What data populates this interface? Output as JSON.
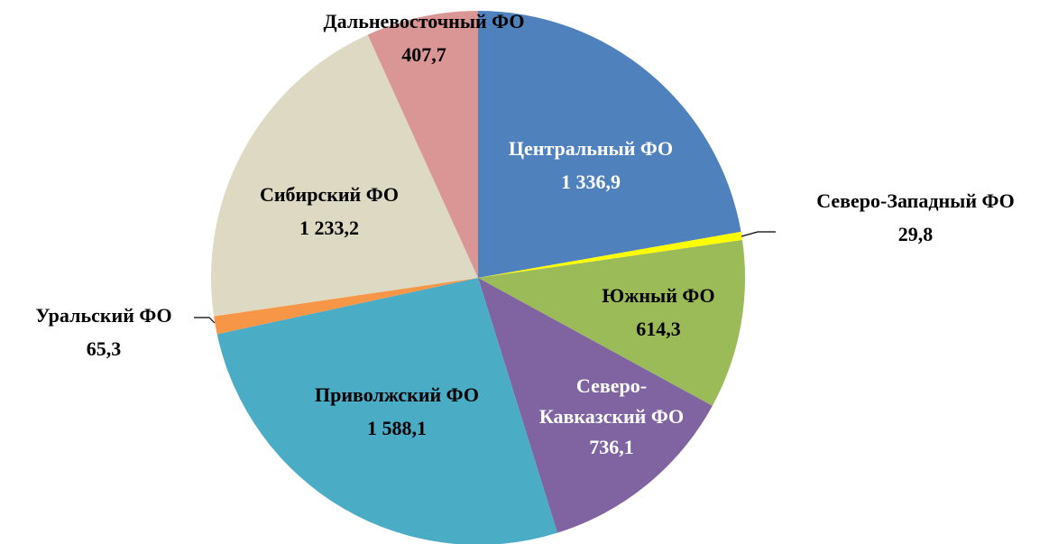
{
  "chart_data": {
    "type": "pie",
    "categories": [
      "Центральный ФО",
      "Северо-Западный ФО",
      "Южный ФО",
      "Северо-Кавказский ФО",
      "Приволжский ФО",
      "Уральский ФО",
      "Сибирский ФО",
      "Дальневосточный ФО"
    ],
    "values": [
      1336.9,
      29.8,
      614.3,
      736.1,
      1588.1,
      65.3,
      1233.2,
      407.7
    ],
    "value_labels": [
      "1 336,9",
      "29,8",
      "614,3",
      "736,1",
      "1 588,1",
      "65,3",
      "1 233,2",
      "407,7"
    ],
    "colors": [
      "#4f81bd",
      "#ffff00",
      "#9bbb59",
      "#8064a2",
      "#4bacc6",
      "#f79646",
      "#ddd9c3",
      "#d99694"
    ]
  }
}
